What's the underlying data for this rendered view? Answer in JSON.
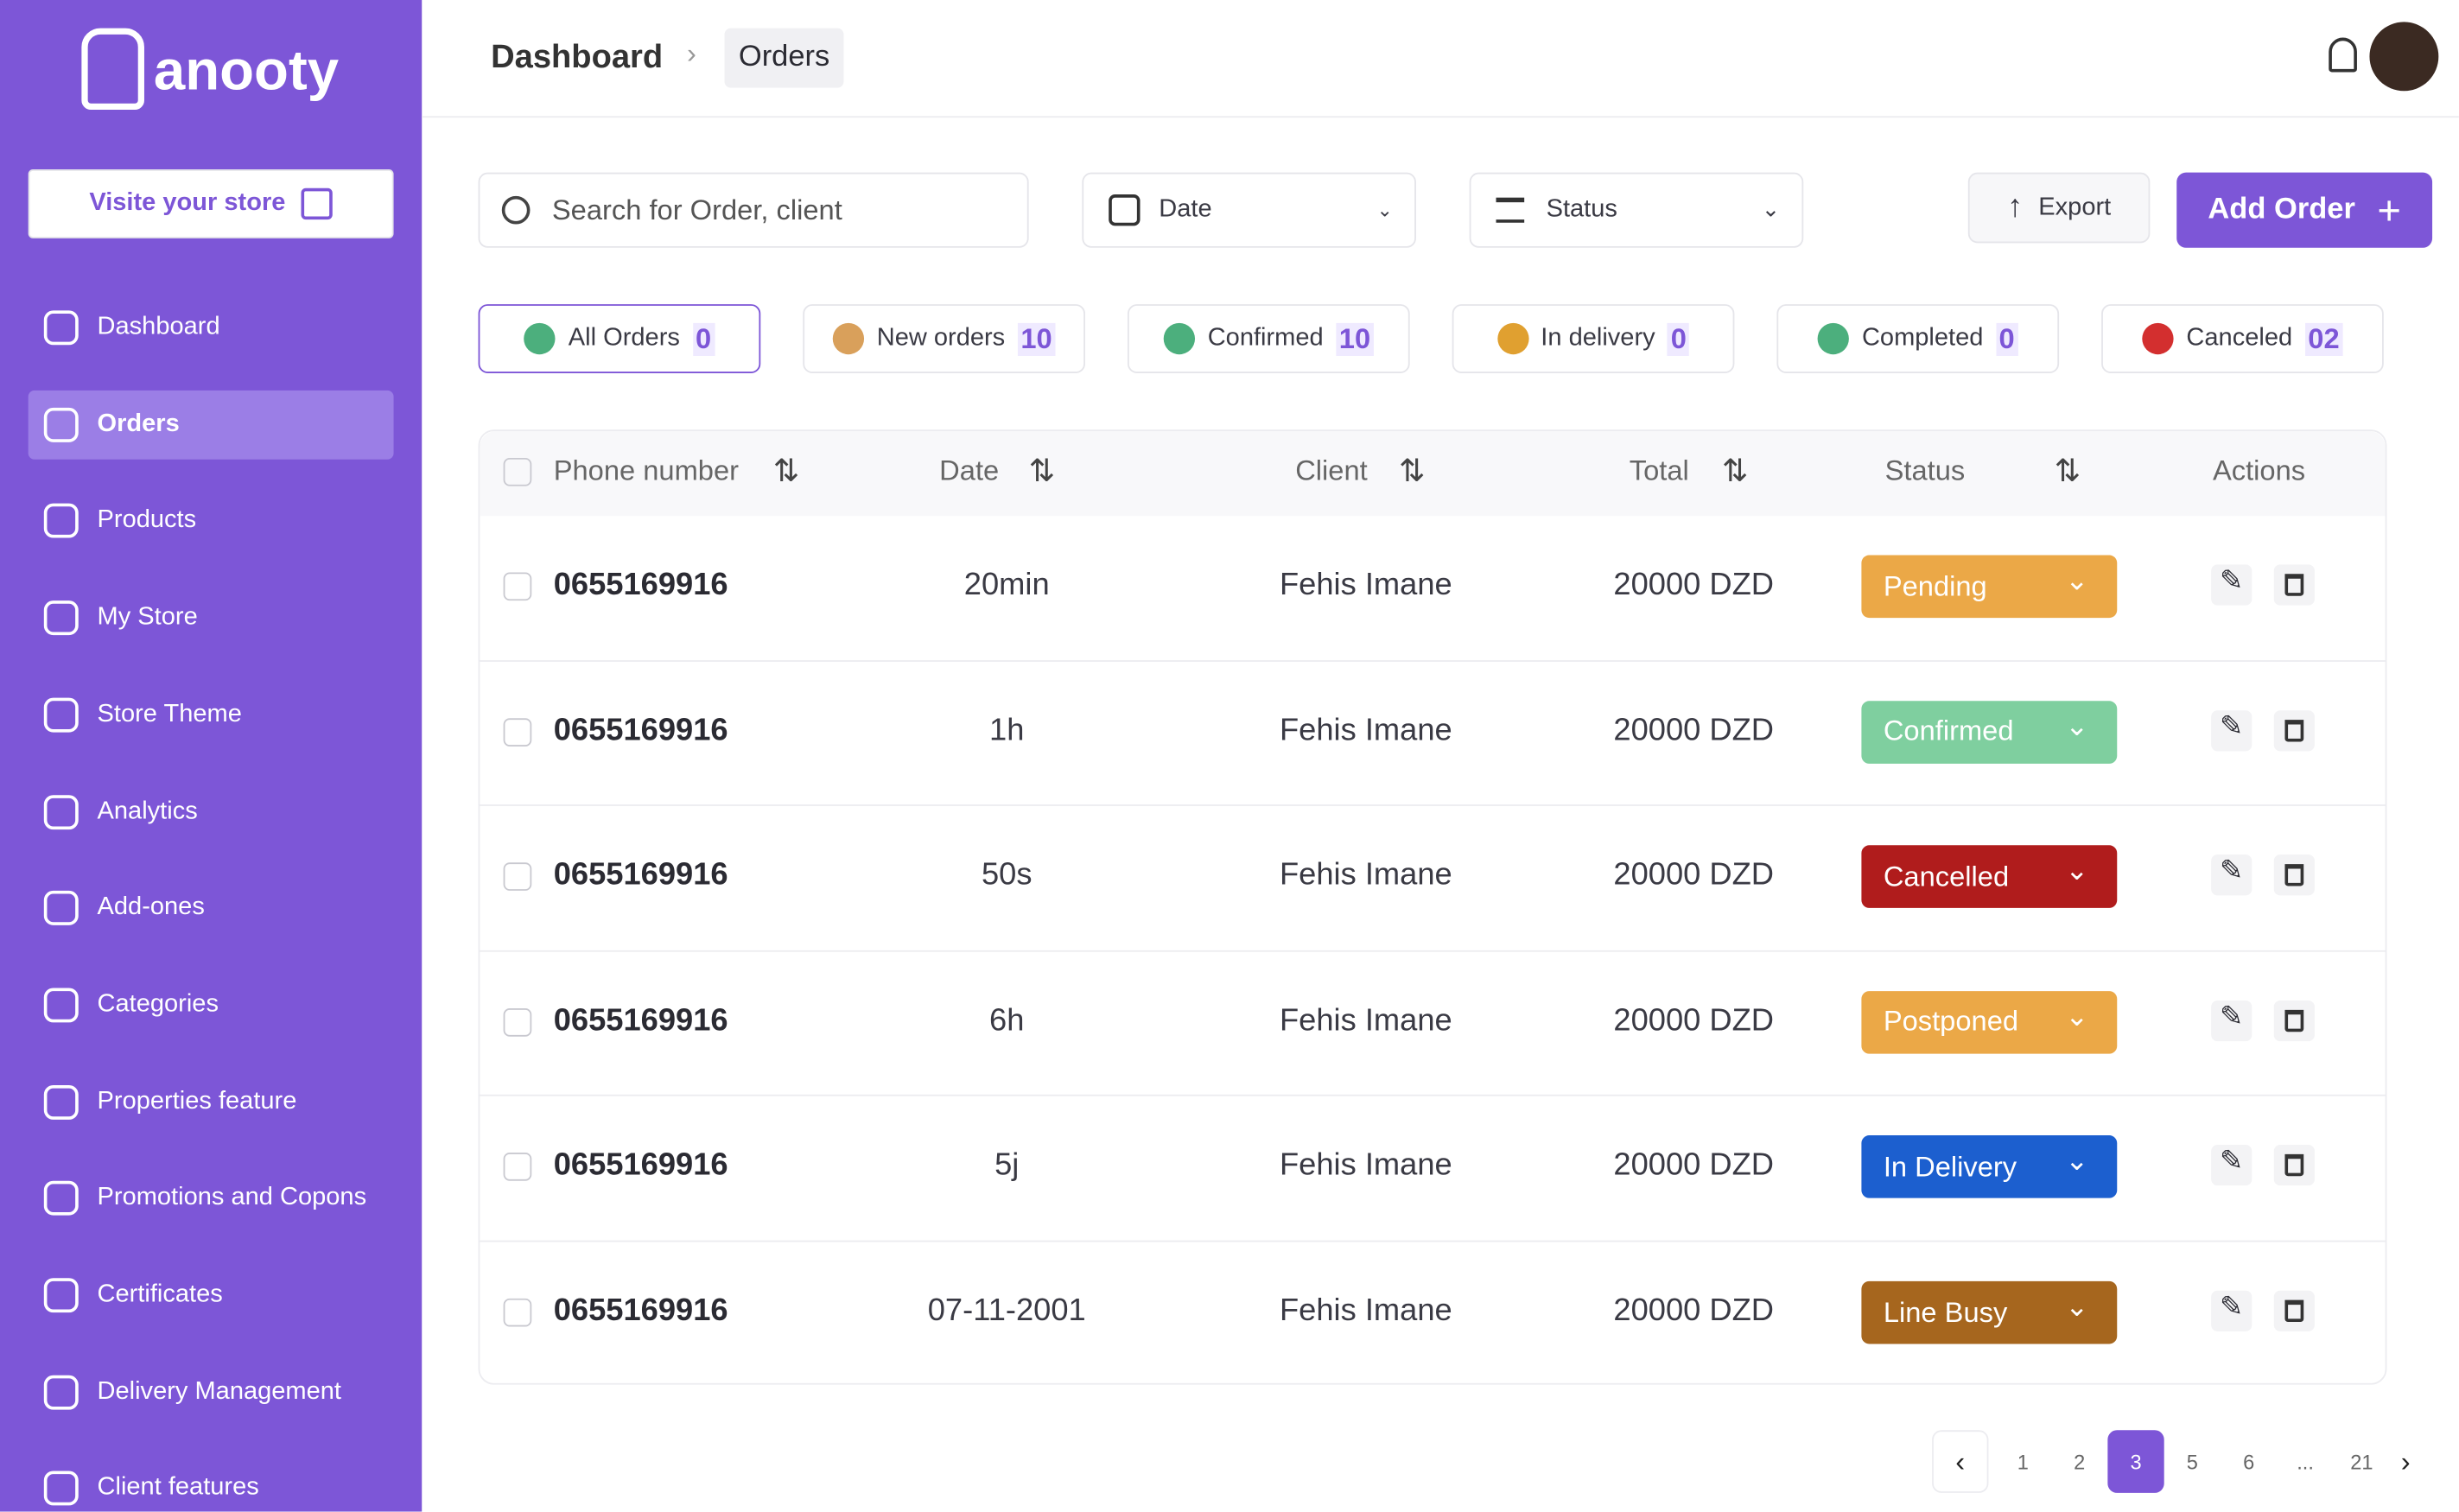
{
  "sidebar": {
    "brand": "anooty",
    "visit_store": "Visite your store",
    "active": 1,
    "nav": [
      "Dashboard",
      "Orders",
      "Products",
      "My Store",
      "Store Theme",
      "Analytics",
      "Add-ones",
      "Categories",
      "Properties feature",
      "Promotions and Copons",
      "Certificates",
      "Delivery Management",
      "Client features"
    ]
  },
  "header": {
    "breadcrumb": [
      "Dashboard",
      "Orders"
    ]
  },
  "toolbar": {
    "search": "Search for Order, client",
    "date": "Date",
    "status": "Status",
    "export": "Export",
    "add": "Add Order"
  },
  "tabs": [
    {
      "label": "All Orders",
      "count": "0",
      "icon_color": "#4caf7d"
    },
    {
      "label": "New orders",
      "count": "10",
      "icon_color": "#d9a05b"
    },
    {
      "label": "Confirmed",
      "count": "10",
      "icon_color": "#4caf7d"
    },
    {
      "label": "In delivery",
      "count": "0",
      "icon_color": "#e0a030"
    },
    {
      "label": "Completed",
      "count": "0",
      "icon_color": "#4caf7d"
    },
    {
      "label": "Canceled",
      "count": "02",
      "icon_color": "#d32f2f"
    }
  ],
  "table": {
    "columns": [
      "Phone number",
      "Date",
      "Client",
      "Total",
      "Status",
      "Actions"
    ],
    "rows": [
      {
        "phone": "0655169916",
        "date": "20min",
        "client": "Fehis Imane",
        "total": "20000 DZD",
        "status": "Pending",
        "color": "#eba847"
      },
      {
        "phone": "0655169916",
        "date": "1h",
        "client": "Fehis Imane",
        "total": "20000 DZD",
        "status": "Confirmed",
        "color": "#7fcf9f"
      },
      {
        "phone": "0655169916",
        "date": "50s",
        "client": "Fehis Imane",
        "total": "20000 DZD",
        "status": "Cancelled",
        "color": "#b01c1c"
      },
      {
        "phone": "0655169916",
        "date": "6h",
        "client": "Fehis Imane",
        "total": "20000 DZD",
        "status": "Postponed",
        "color": "#eba847"
      },
      {
        "phone": "0655169916",
        "date": "5j",
        "client": "Fehis Imane",
        "total": "20000 DZD",
        "status": "In Delivery",
        "color": "#1c5fcf"
      },
      {
        "phone": "0655169916",
        "date": "07-11-2001",
        "client": "Fehis Imane",
        "total": "20000 DZD",
        "status": "Line Busy",
        "color": "#a6661e"
      }
    ]
  },
  "pagination": {
    "pages": [
      "1",
      "2",
      "3",
      "5",
      "6",
      "...",
      "21"
    ],
    "current": 2
  }
}
